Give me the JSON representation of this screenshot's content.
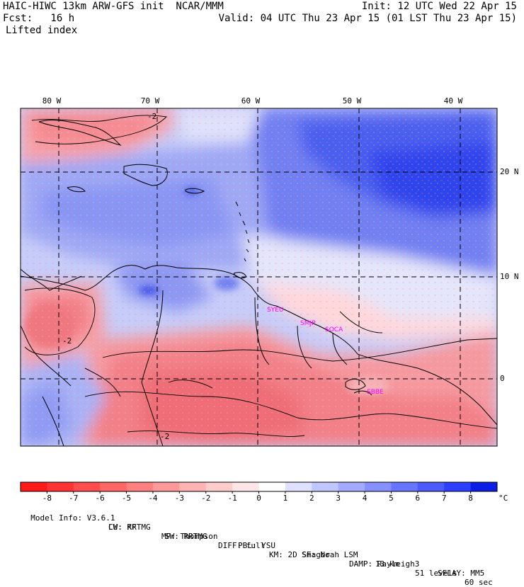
{
  "header": {
    "model_line": "HAIC-HIWC 13km ARW-GFS init  NCAR/MMM",
    "init_line": "Init: 12 UTC Wed 22 Apr 15",
    "fcst_line": "Fcst:   16 h",
    "valid_line": "Valid: 04 UTC Thu 23 Apr 15 (01 LST Thu 23 Apr 15)",
    "field_name": "Lifted index"
  },
  "map": {
    "lon_labels": [
      "80 W",
      "70 W",
      "60 W",
      "50 W",
      "40 W"
    ],
    "lat_labels": [
      "20 N",
      "10 N",
      "0"
    ],
    "contour_label": "-2",
    "stations": [
      "SYEU",
      "SMJP",
      "SOCA",
      "SBBE"
    ],
    "station_color": "#ff00ff"
  },
  "colorbar": {
    "labels": [
      "-8",
      "-7",
      "-6",
      "-5",
      "-4",
      "-3",
      "-2",
      "-1",
      "0",
      "1",
      "2",
      "3",
      "4",
      "5",
      "6",
      "7",
      "8"
    ],
    "unit": "°C",
    "colors": [
      "#ff1a1a",
      "#ff3333",
      "#ff4d4d",
      "#ff6666",
      "#ff8080",
      "#ff9999",
      "#ffb3b3",
      "#ffcccc",
      "#ffe6e6",
      "#ffffff",
      "#dde0ff",
      "#c0c6ff",
      "#a3abff",
      "#8690ff",
      "#6875ff",
      "#4b5bff",
      "#2e40ff",
      "#0a1ee6"
    ]
  },
  "footer": {
    "line1": [
      "Model Info: V3.6.1",
      "CU: KF",
      "MP: Thompson",
      "PBL: YSU",
      "SF: Noah LSM",
      "13 km",
      "51 levels",
      "60 sec"
    ],
    "line2": [
      "LW: RRTMG",
      "SW: RRTMG",
      "DIFF: full",
      "KM: 2D Smagor",
      "DAMP: Rayleigh3",
      "SFLAY: MM5"
    ]
  }
}
